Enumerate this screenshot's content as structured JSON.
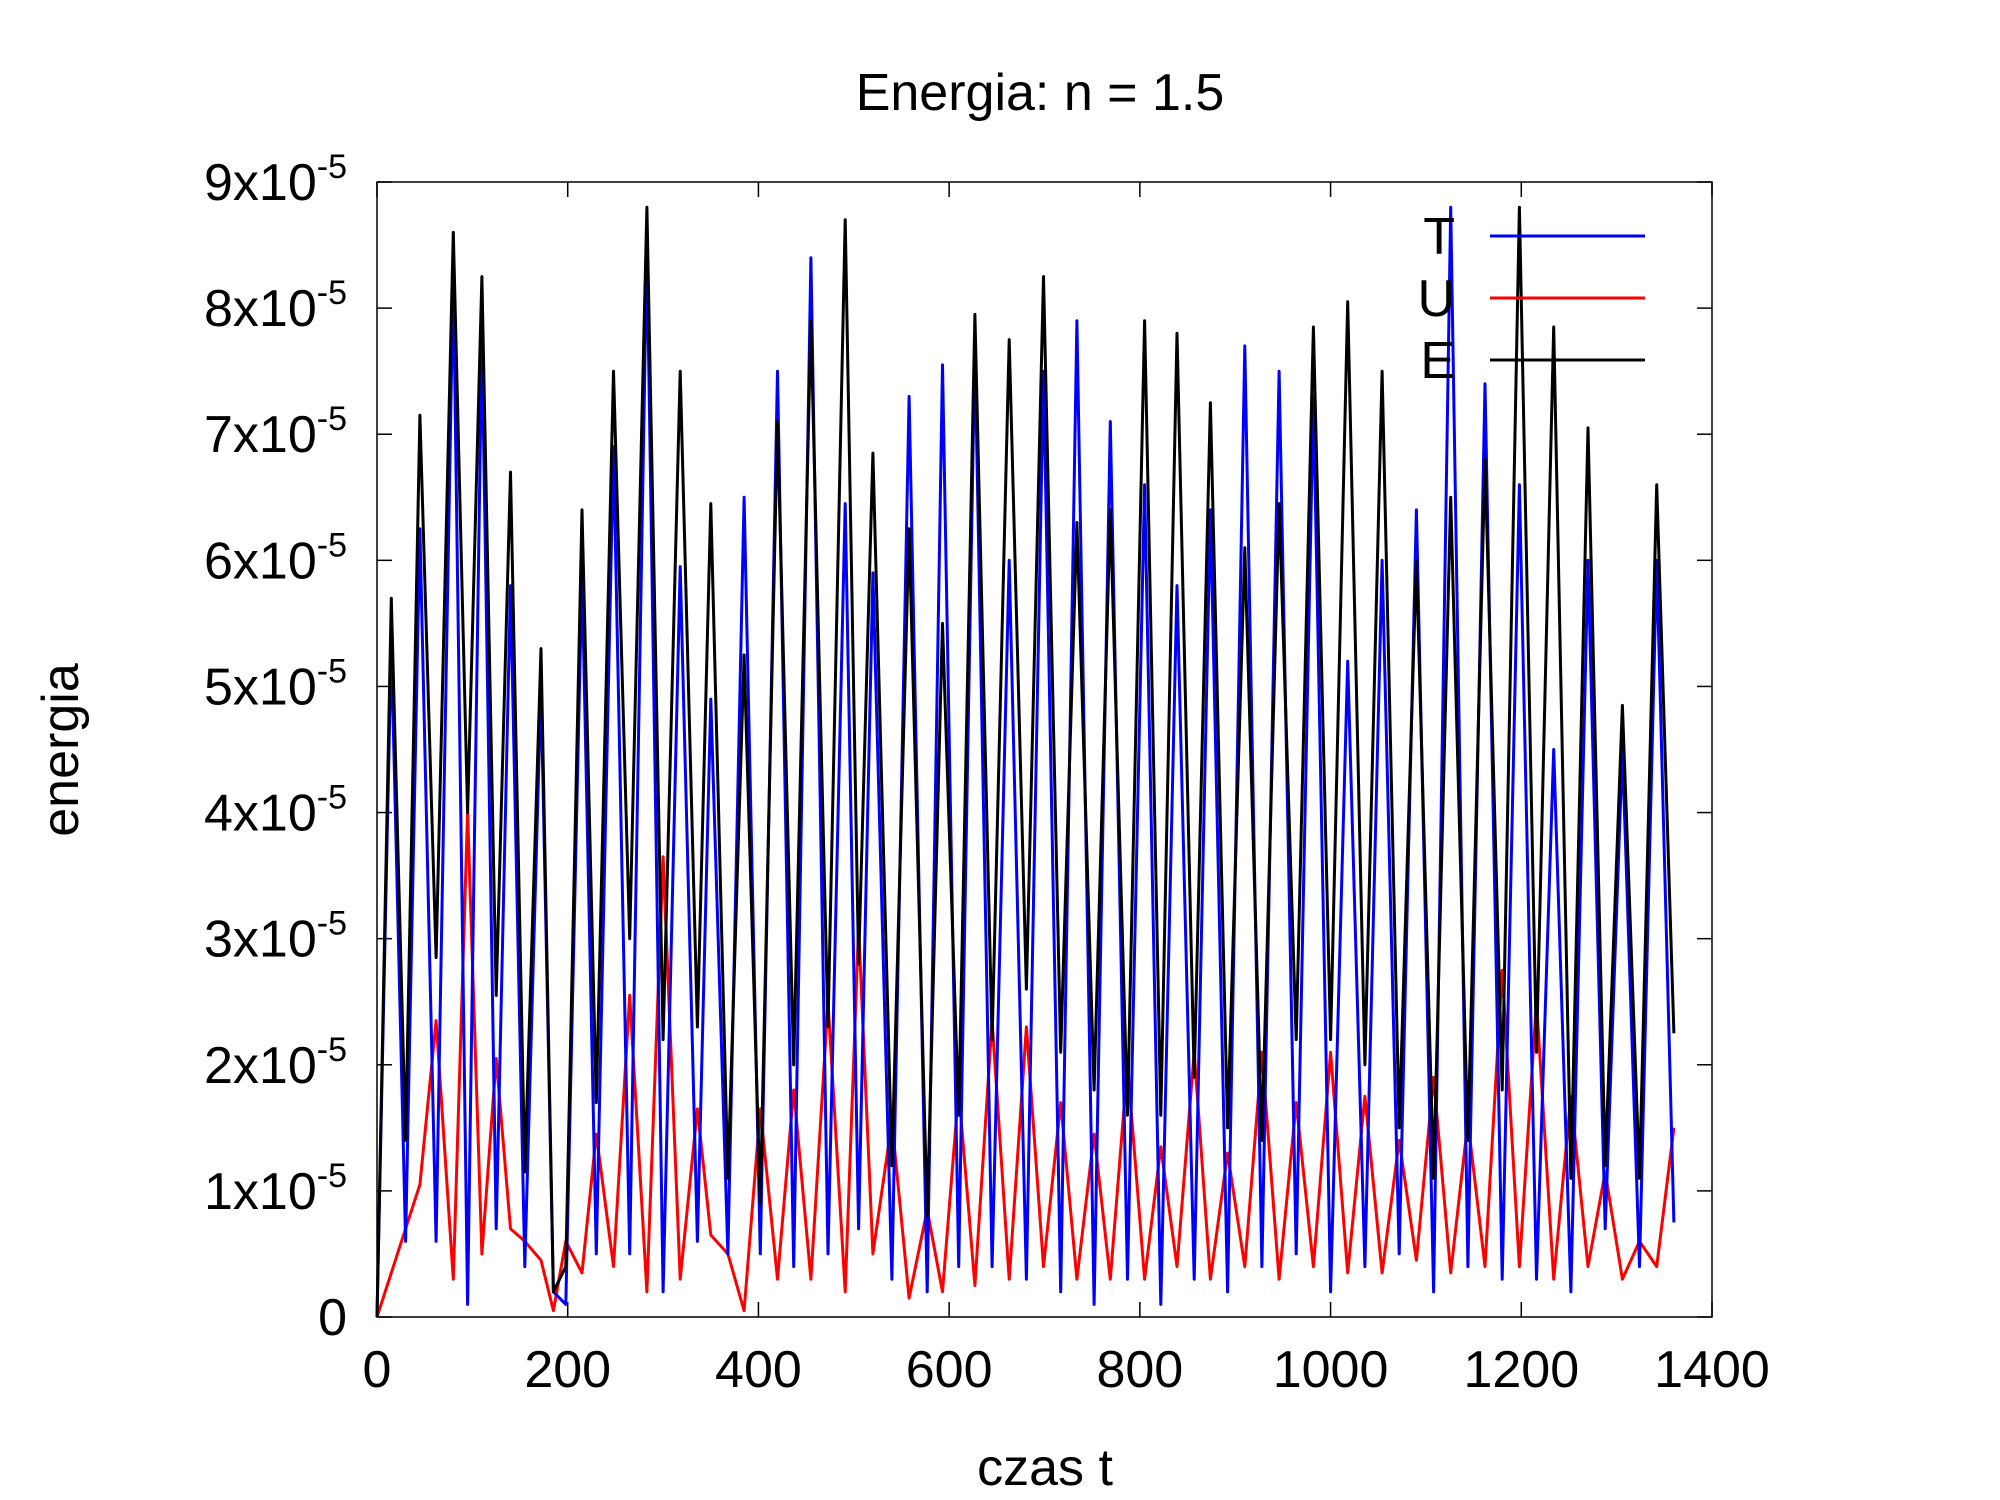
{
  "chart_data": {
    "type": "line",
    "title": "Energia: n = 1.5",
    "xlabel": "czas t",
    "ylabel": "energia",
    "xlim": [
      0,
      1400
    ],
    "ylim": [
      0,
      9e-05
    ],
    "x_ticks": [
      0,
      200,
      400,
      600,
      800,
      1000,
      1200,
      1400
    ],
    "x_tick_labels": [
      "0",
      "200",
      "400",
      "600",
      "800",
      "1000",
      "1200",
      "1400"
    ],
    "y_ticks": [
      0,
      1e-05,
      2e-05,
      3e-05,
      4e-05,
      5e-05,
      6e-05,
      7e-05,
      8e-05,
      9e-05
    ],
    "y_tick_labels": [
      {
        "base": "0",
        "exp": ""
      },
      {
        "base": "1x10",
        "exp": "-5"
      },
      {
        "base": "2x10",
        "exp": "-5"
      },
      {
        "base": "3x10",
        "exp": "-5"
      },
      {
        "base": "4x10",
        "exp": "-5"
      },
      {
        "base": "5x10",
        "exp": "-5"
      },
      {
        "base": "6x10",
        "exp": "-5"
      },
      {
        "base": "7x10",
        "exp": "-5"
      },
      {
        "base": "8x10",
        "exp": "-5"
      },
      {
        "base": "9x10",
        "exp": "-5"
      }
    ],
    "grid": false,
    "legend_position": "top-right",
    "series": [
      {
        "name": "T",
        "color": "#0000ff",
        "x": [
          0,
          15,
          30,
          45,
          62,
          80,
          95,
          110,
          125,
          140,
          155,
          172,
          185,
          198,
          215,
          230,
          248,
          265,
          283,
          300,
          318,
          336,
          350,
          368,
          385,
          402,
          420,
          437,
          455,
          473,
          491,
          505,
          520,
          540,
          558,
          577,
          593,
          610,
          627,
          645,
          663,
          681,
          699,
          717,
          734,
          752,
          769,
          787,
          805,
          822,
          839,
          857,
          874,
          892,
          910,
          928,
          946,
          964,
          982,
          1000,
          1018,
          1036,
          1054,
          1072,
          1090,
          1108,
          1126,
          1144,
          1162,
          1180,
          1198,
          1216,
          1234,
          1252,
          1270,
          1288,
          1306,
          1324,
          1342,
          1360
        ],
        "values": [
          0,
          5.35e-05,
          6e-06,
          6.25e-05,
          6e-06,
          8.3e-05,
          1e-06,
          7.8e-05,
          7e-06,
          5.8e-05,
          4e-06,
          5e-05,
          2e-06,
          1e-06,
          5.9e-05,
          5e-06,
          6.9e-05,
          5e-06,
          8.5e-05,
          2e-06,
          5.95e-05,
          6e-06,
          4.9e-05,
          5e-06,
          6.5e-05,
          5e-06,
          7.5e-05,
          4e-06,
          8.4e-05,
          5e-06,
          6.45e-05,
          7e-06,
          5.9e-05,
          3e-06,
          7.3e-05,
          2e-06,
          7.55e-05,
          4e-06,
          7.7e-05,
          4e-06,
          6e-05,
          3e-06,
          7.5e-05,
          2e-06,
          7.9e-05,
          1e-06,
          7.1e-05,
          3e-06,
          6.6e-05,
          1e-06,
          5.8e-05,
          3e-06,
          6.4e-05,
          2e-06,
          7.7e-05,
          4e-06,
          7.5e-05,
          5e-06,
          7.3e-05,
          2e-06,
          5.2e-05,
          4e-06,
          6e-05,
          5e-06,
          6.4e-05,
          2e-06,
          8.8e-05,
          4e-06,
          7.4e-05,
          3e-06,
          6.6e-05,
          3e-06,
          4.5e-05,
          2e-06,
          6e-05,
          7e-06,
          4.5e-05,
          4e-06,
          6e-05,
          7.5e-06
        ]
      },
      {
        "name": "U",
        "color": "#ff0000",
        "x": [
          0,
          15,
          30,
          45,
          62,
          80,
          95,
          110,
          125,
          140,
          155,
          172,
          185,
          198,
          215,
          230,
          248,
          265,
          283,
          300,
          318,
          336,
          350,
          368,
          385,
          402,
          420,
          437,
          455,
          473,
          491,
          505,
          520,
          540,
          558,
          577,
          593,
          610,
          627,
          645,
          663,
          681,
          699,
          717,
          734,
          752,
          769,
          787,
          805,
          822,
          839,
          857,
          874,
          892,
          910,
          928,
          946,
          964,
          982,
          1000,
          1018,
          1036,
          1054,
          1072,
          1090,
          1108,
          1126,
          1144,
          1162,
          1180,
          1198,
          1216,
          1234,
          1252,
          1270,
          1288,
          1306,
          1324,
          1342,
          1360
        ],
        "values": [
          0,
          3.5e-06,
          7e-06,
          1.05e-05,
          2.35e-05,
          3e-06,
          4e-05,
          5e-06,
          2.05e-05,
          7e-06,
          6e-06,
          4.5e-06,
          5e-07,
          6e-06,
          3.5e-06,
          1.45e-05,
          4e-06,
          2.55e-05,
          2e-06,
          3.65e-05,
          3e-06,
          1.65e-05,
          6.5e-06,
          5e-06,
          5e-07,
          1.65e-05,
          3e-06,
          1.8e-05,
          3e-06,
          2.5e-05,
          2e-06,
          3.1e-05,
          5e-06,
          1.55e-05,
          1.5e-06,
          8.5e-06,
          2e-06,
          1.8e-05,
          2.5e-06,
          2.35e-05,
          3e-06,
          2.3e-05,
          4e-06,
          1.7e-05,
          3e-06,
          1.45e-05,
          3e-06,
          2e-05,
          3e-06,
          1.35e-05,
          4e-06,
          2.1e-05,
          3e-06,
          1.3e-05,
          4e-06,
          2.1e-05,
          3e-06,
          1.7e-05,
          4e-06,
          2.1e-05,
          3.5e-06,
          1.75e-05,
          3.5e-06,
          1.4e-05,
          4.5e-06,
          1.9e-05,
          3.5e-06,
          1.55e-05,
          4e-06,
          2.75e-05,
          4e-06,
          2.5e-05,
          3e-06,
          1.75e-05,
          4e-06,
          1.15e-05,
          3e-06,
          6e-06,
          4e-06,
          1.5e-05
        ]
      },
      {
        "name": "E",
        "color": "#000000",
        "x": [
          0,
          15,
          30,
          45,
          62,
          80,
          95,
          110,
          125,
          140,
          155,
          172,
          185,
          198,
          215,
          230,
          248,
          265,
          283,
          300,
          318,
          336,
          350,
          368,
          385,
          402,
          420,
          437,
          455,
          473,
          491,
          505,
          520,
          540,
          558,
          577,
          593,
          610,
          627,
          645,
          663,
          681,
          699,
          717,
          734,
          752,
          769,
          787,
          805,
          822,
          839,
          857,
          874,
          892,
          910,
          928,
          946,
          964,
          982,
          1000,
          1018,
          1036,
          1054,
          1072,
          1090,
          1108,
          1126,
          1144,
          1162,
          1180,
          1198,
          1216,
          1234,
          1252,
          1270,
          1288,
          1306,
          1324,
          1342,
          1360
        ],
        "values": [
          0,
          5.7e-05,
          1.4e-05,
          7.15e-05,
          2.85e-05,
          8.6e-05,
          4e-05,
          8.25e-05,
          2.55e-05,
          6.7e-05,
          1.15e-05,
          5.3e-05,
          2e-06,
          4e-06,
          6.4e-05,
          1.7e-05,
          7.5e-05,
          3e-05,
          8.8e-05,
          2.2e-05,
          7.5e-05,
          2.3e-05,
          6.45e-05,
          1.1e-05,
          5.25e-05,
          9e-06,
          7.1e-05,
          2e-05,
          7.9e-05,
          2.3e-05,
          8.7e-05,
          2.8e-05,
          6.85e-05,
          1.2e-05,
          6.25e-05,
          8e-06,
          5.5e-05,
          1.6e-05,
          7.95e-05,
          2.2e-05,
          7.75e-05,
          2.6e-05,
          8.25e-05,
          2.1e-05,
          6.3e-05,
          1.8e-05,
          6.4e-05,
          1.6e-05,
          7.9e-05,
          1.6e-05,
          7.8e-05,
          1.9e-05,
          7.25e-05,
          1.5e-05,
          6.1e-05,
          1.4e-05,
          6.45e-05,
          2.2e-05,
          7.85e-05,
          2.2e-05,
          8.05e-05,
          2e-05,
          7.5e-05,
          1.5e-05,
          6e-05,
          1.1e-05,
          6.5e-05,
          1.4e-05,
          6.8e-05,
          1.8e-05,
          8.8e-05,
          2.1e-05,
          7.85e-05,
          1.1e-05,
          7.05e-05,
          1.2e-05,
          4.85e-05,
          1.1e-05,
          6.6e-05,
          2.25e-05
        ]
      }
    ]
  }
}
